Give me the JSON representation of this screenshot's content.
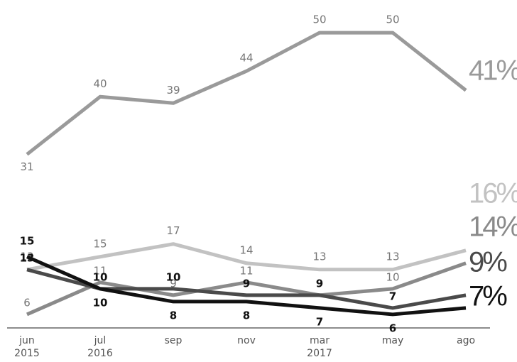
{
  "chart_data": {
    "type": "line",
    "categories": [
      "jun",
      "jul",
      "sep",
      "nov",
      "mar",
      "may",
      "ago"
    ],
    "year_labels": [
      "2015",
      "2016",
      null,
      null,
      "2017",
      null,
      null
    ],
    "ylim": [
      3,
      54
    ],
    "series": [
      {
        "color": "#9a9a9a",
        "values": [
          31,
          40,
          39,
          44,
          50,
          50,
          41
        ],
        "value_labels": [
          "31",
          "40",
          "39",
          "44",
          "50",
          "50",
          "41%"
        ]
      },
      {
        "color": "#c2c2c2",
        "values": [
          13,
          15,
          17,
          14,
          13,
          13,
          16
        ],
        "value_labels": [
          "13",
          "15",
          "17",
          "14",
          "13",
          "13",
          "16%"
        ]
      },
      {
        "color": "#8a8a8a",
        "values": [
          6,
          11,
          9,
          11,
          9,
          10,
          14
        ],
        "value_labels": [
          "6",
          "11",
          "9",
          "11",
          "9",
          "10",
          "14%"
        ]
      },
      {
        "color": "#4a4a4a",
        "values": [
          13,
          10,
          10,
          9,
          9,
          7,
          9
        ],
        "value_labels": [
          "13",
          "10",
          "10",
          "9",
          "9",
          "7",
          "9%"
        ]
      },
      {
        "color": "#111111",
        "values": [
          15,
          10,
          8,
          8,
          7,
          6,
          7
        ],
        "value_labels": [
          "15",
          "10",
          "8",
          "8",
          "7",
          "6",
          "7%"
        ]
      }
    ]
  }
}
